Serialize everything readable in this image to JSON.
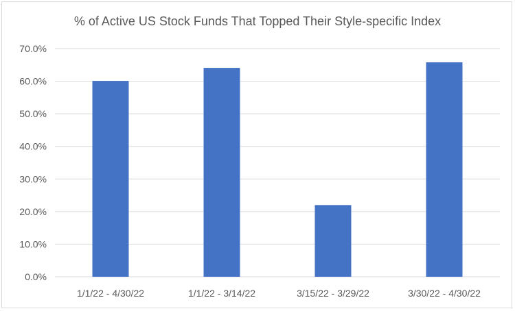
{
  "chart_data": {
    "type": "bar",
    "title": "% of Active US Stock Funds That Topped Their Style-specific Index",
    "xlabel": "",
    "ylabel": "",
    "categories": [
      "1/1/22 - 4/30/22",
      "1/1/22 - 3/14/22",
      "3/15/22 - 3/29/22",
      "3/30/22 - 4/30/22"
    ],
    "values": [
      60.1,
      64.1,
      22.0,
      65.8
    ],
    "ylim": [
      0,
      70
    ],
    "yticks": [
      "0.0%",
      "10.0%",
      "20.0%",
      "30.0%",
      "40.0%",
      "50.0%",
      "60.0%",
      "70.0%"
    ],
    "grid": true,
    "legend": "none",
    "bar_color": "#4472c4"
  }
}
